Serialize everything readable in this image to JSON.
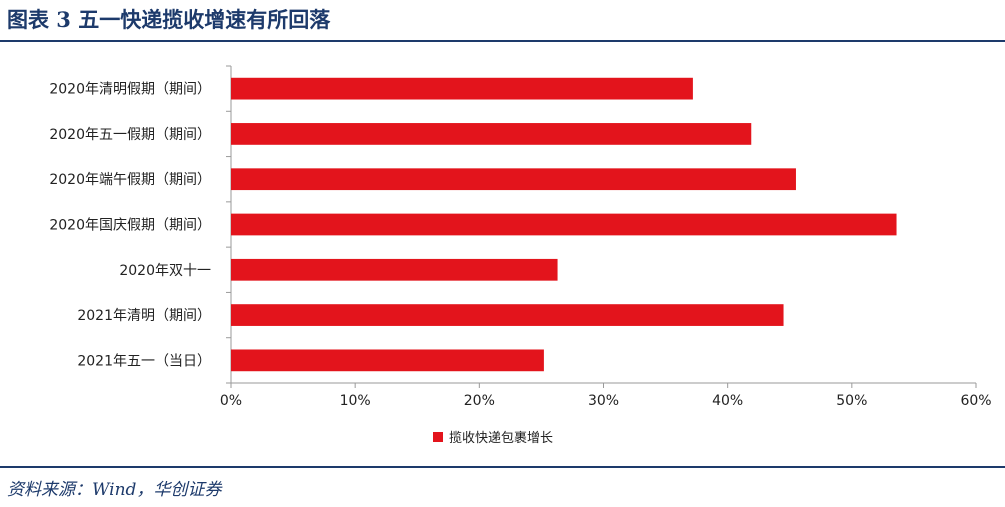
{
  "figure": {
    "title": "图表 3   五一快递揽收增速有所回落",
    "source": "资料来源：Wind，华创证券"
  },
  "colors": {
    "bar": "#e3141c",
    "accent": "#1d3a6b",
    "axis": "#9a9a9a",
    "text": "#222222"
  },
  "chart_data": {
    "type": "bar",
    "orientation": "horizontal",
    "categories": [
      "2020年清明假期（期间）",
      "2020年五一假期（期间）",
      "2020年端午假期（期间）",
      "2020年国庆假期（期间）",
      "2020年双十一",
      "2021年清明（期间）",
      "2021年五一（当日）"
    ],
    "series": [
      {
        "name": "揽收快递包裹增长",
        "values": [
          0.372,
          0.419,
          0.455,
          0.536,
          0.263,
          0.445,
          0.252
        ]
      }
    ],
    "xlim": [
      0,
      0.6
    ],
    "xticks": [
      "0%",
      "10%",
      "20%",
      "30%",
      "40%",
      "50%",
      "60%"
    ],
    "legend_position": "bottom",
    "grid": false
  }
}
